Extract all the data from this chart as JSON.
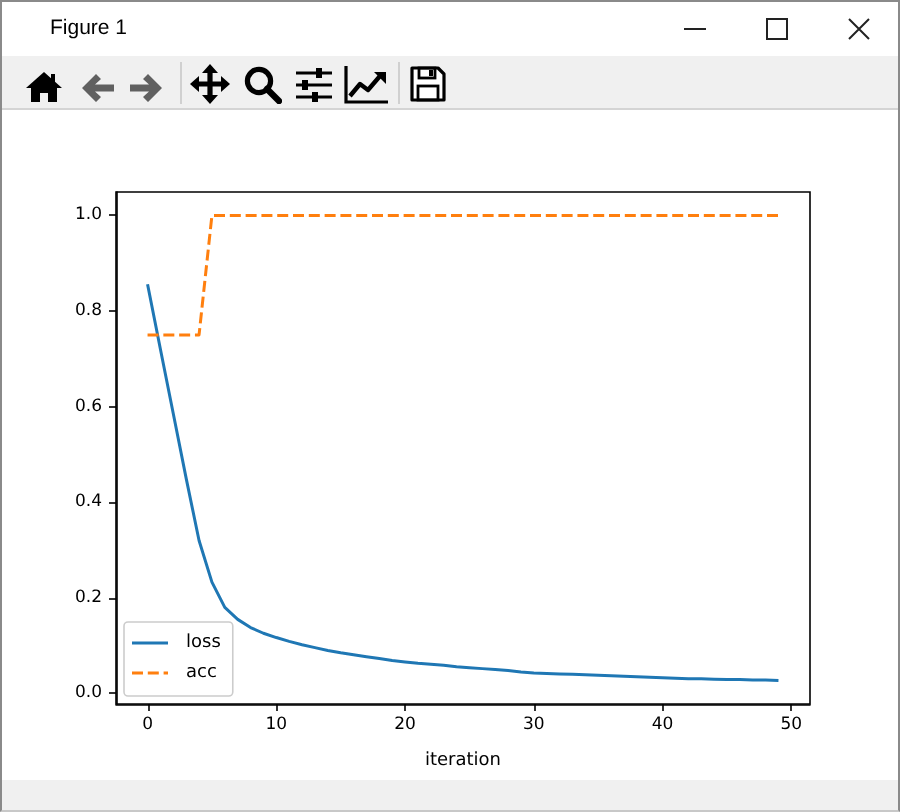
{
  "chart_data": {
    "type": "line",
    "annotations": [
      "Figure 1"
    ],
    "xlabel": "iteration",
    "x": [
      0,
      1,
      2,
      3,
      4,
      5,
      6,
      7,
      8,
      9,
      10,
      11,
      12,
      13,
      14,
      15,
      16,
      17,
      18,
      19,
      20,
      21,
      22,
      23,
      24,
      25,
      26,
      27,
      28,
      29,
      30,
      31,
      32,
      33,
      34,
      35,
      36,
      37,
      38,
      39,
      40,
      41,
      42,
      43,
      44,
      45,
      46,
      47,
      48,
      49
    ],
    "series": [
      {
        "name": "loss",
        "color": "#1f77b4",
        "line_style": "solid",
        "values": [
          0.856,
          0.72,
          0.585,
          0.45,
          0.32,
          0.233,
          0.18,
          0.155,
          0.138,
          0.126,
          0.117,
          0.109,
          0.102,
          0.096,
          0.09,
          0.085,
          0.081,
          0.077,
          0.073,
          0.069,
          0.066,
          0.063,
          0.061,
          0.059,
          0.056,
          0.054,
          0.052,
          0.05,
          0.048,
          0.045,
          0.043,
          0.042,
          0.041,
          0.04,
          0.039,
          0.038,
          0.037,
          0.036,
          0.035,
          0.034,
          0.033,
          0.032,
          0.031,
          0.031,
          0.03,
          0.029,
          0.029,
          0.028,
          0.028,
          0.027
        ]
      },
      {
        "name": "acc",
        "color": "#ff7f0e",
        "line_style": "dashed",
        "values": [
          0.75,
          0.75,
          0.75,
          0.75,
          0.75,
          1,
          1,
          1,
          1,
          1,
          1,
          1,
          1,
          1,
          1,
          1,
          1,
          1,
          1,
          1,
          1,
          1,
          1,
          1,
          1,
          1,
          1,
          1,
          1,
          1,
          1,
          1,
          1,
          1,
          1,
          1,
          1,
          1,
          1,
          1,
          1,
          1,
          1,
          1,
          1,
          1,
          1,
          1,
          1,
          1
        ]
      }
    ],
    "xlim": [
      -2.45,
      51.45
    ],
    "xticks": [
      0,
      10,
      20,
      30,
      40,
      50
    ],
    "ylim": [
      -0.022,
      1.049
    ],
    "yticks": [
      {
        "value": 0,
        "label": "0.0"
      },
      0.2,
      0.4,
      0.6,
      0.8,
      {
        "value": 1,
        "label": "1.0"
      }
    ],
    "grid": false,
    "legend": "bottom left",
    "marker": "none"
  }
}
